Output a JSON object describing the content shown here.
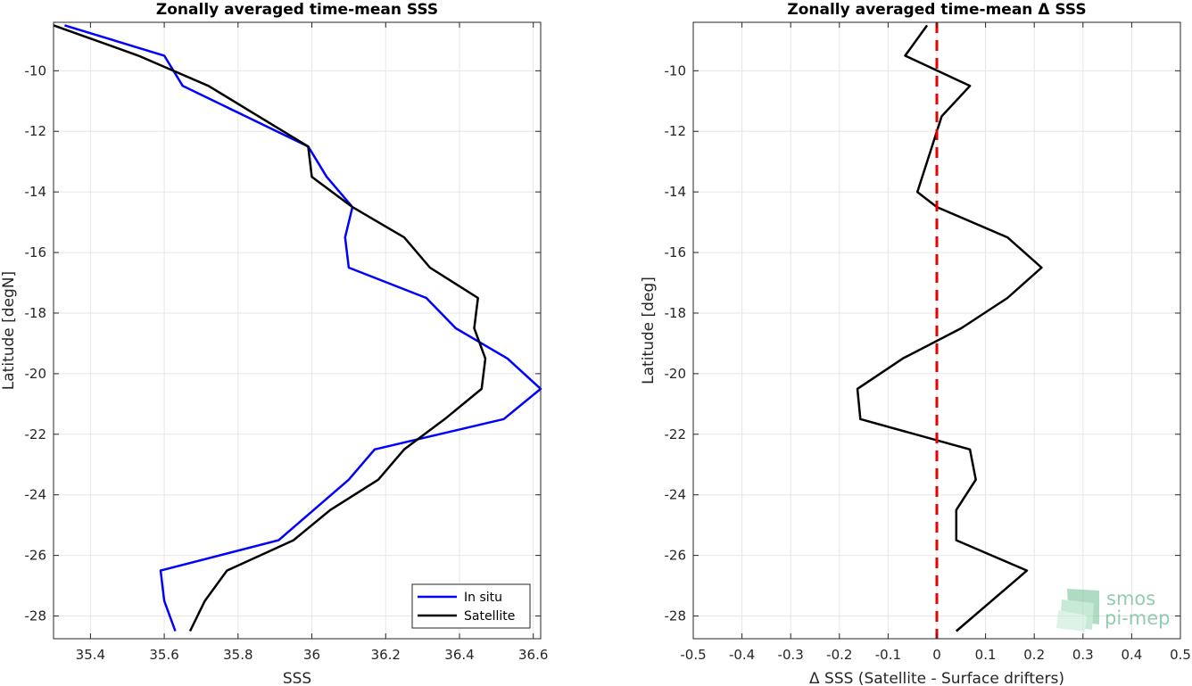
{
  "chart_data": [
    {
      "type": "line",
      "title": "Zonally averaged time-mean SSS",
      "xlabel": "SSS",
      "ylabel": "Latitude [degN]",
      "xlim": [
        35.3,
        36.62
      ],
      "ylim": [
        -28.75,
        -8.4
      ],
      "xticks": [
        35.4,
        35.6,
        35.8,
        36,
        36.2,
        36.4,
        36.6
      ],
      "yticks": [
        -28,
        -26,
        -24,
        -22,
        -20,
        -18,
        -16,
        -14,
        -12,
        -10
      ],
      "grid": true,
      "legend": "bottom-right",
      "series": [
        {
          "name": "In situ",
          "color": "#0000ff",
          "points": [
            [
              35.33,
              -8.5
            ],
            [
              35.6,
              -9.5
            ],
            [
              35.65,
              -10.5
            ],
            [
              35.99,
              -12.5
            ],
            [
              36.04,
              -13.5
            ],
            [
              36.11,
              -14.5
            ],
            [
              36.09,
              -15.5
            ],
            [
              36.1,
              -16.5
            ],
            [
              36.31,
              -17.5
            ],
            [
              36.39,
              -18.5
            ],
            [
              36.53,
              -19.5
            ],
            [
              36.62,
              -20.5
            ],
            [
              36.52,
              -21.5
            ],
            [
              36.17,
              -22.5
            ],
            [
              36.1,
              -23.5
            ],
            [
              35.91,
              -25.5
            ],
            [
              35.59,
              -26.5
            ],
            [
              35.6,
              -27.5
            ],
            [
              35.63,
              -28.5
            ]
          ]
        },
        {
          "name": "Satellite",
          "color": "#000000",
          "points": [
            [
              35.3,
              -8.5
            ],
            [
              35.53,
              -9.5
            ],
            [
              35.72,
              -10.5
            ],
            [
              35.99,
              -12.5
            ],
            [
              36.0,
              -13.5
            ],
            [
              36.11,
              -14.5
            ],
            [
              36.25,
              -15.5
            ],
            [
              36.32,
              -16.5
            ],
            [
              36.45,
              -17.5
            ],
            [
              36.44,
              -18.5
            ],
            [
              36.47,
              -19.5
            ],
            [
              36.46,
              -20.5
            ],
            [
              36.36,
              -21.5
            ],
            [
              36.25,
              -22.5
            ],
            [
              36.18,
              -23.5
            ],
            [
              36.05,
              -24.5
            ],
            [
              35.95,
              -25.5
            ],
            [
              35.77,
              -26.5
            ],
            [
              35.71,
              -27.5
            ],
            [
              35.67,
              -28.5
            ]
          ]
        }
      ]
    },
    {
      "type": "line",
      "title": "Zonally averaged time-mean Δ SSS",
      "xlabel": "Δ SSS (Satellite - Surface drifters)",
      "ylabel": "Latitude [deg]",
      "xlim": [
        -0.5,
        0.5
      ],
      "ylim": [
        -28.75,
        -8.4
      ],
      "xticks": [
        -0.5,
        -0.4,
        -0.3,
        -0.2,
        -0.1,
        0,
        0.1,
        0.2,
        0.3,
        0.4,
        0.5
      ],
      "yticks": [
        -28,
        -26,
        -24,
        -22,
        -20,
        -18,
        -16,
        -14,
        -12,
        -10
      ],
      "grid": true,
      "series": [
        {
          "color": "#000000",
          "points": [
            [
              -0.02,
              -8.5
            ],
            [
              -0.065,
              -9.5
            ],
            [
              0.068,
              -10.5
            ],
            [
              0.01,
              -11.5
            ],
            [
              -0.04,
              -14
            ],
            [
              0.0,
              -14.5
            ],
            [
              0.145,
              -15.5
            ],
            [
              0.215,
              -16.5
            ],
            [
              0.145,
              -17.5
            ],
            [
              0.05,
              -18.5
            ],
            [
              -0.07,
              -19.5
            ],
            [
              -0.163,
              -20.5
            ],
            [
              -0.157,
              -21.5
            ],
            [
              0.068,
              -22.5
            ],
            [
              0.08,
              -23.5
            ],
            [
              0.04,
              -24.5
            ],
            [
              0.04,
              -25.5
            ],
            [
              0.185,
              -26.5
            ],
            [
              0.04,
              -28.5
            ]
          ]
        },
        {
          "color": "#e60000",
          "dashed": true,
          "points": [
            [
              0,
              -8.4
            ],
            [
              0,
              -28.75
            ]
          ]
        }
      ]
    }
  ],
  "logo": {
    "line1": "smos",
    "line2": "pi-mep"
  }
}
